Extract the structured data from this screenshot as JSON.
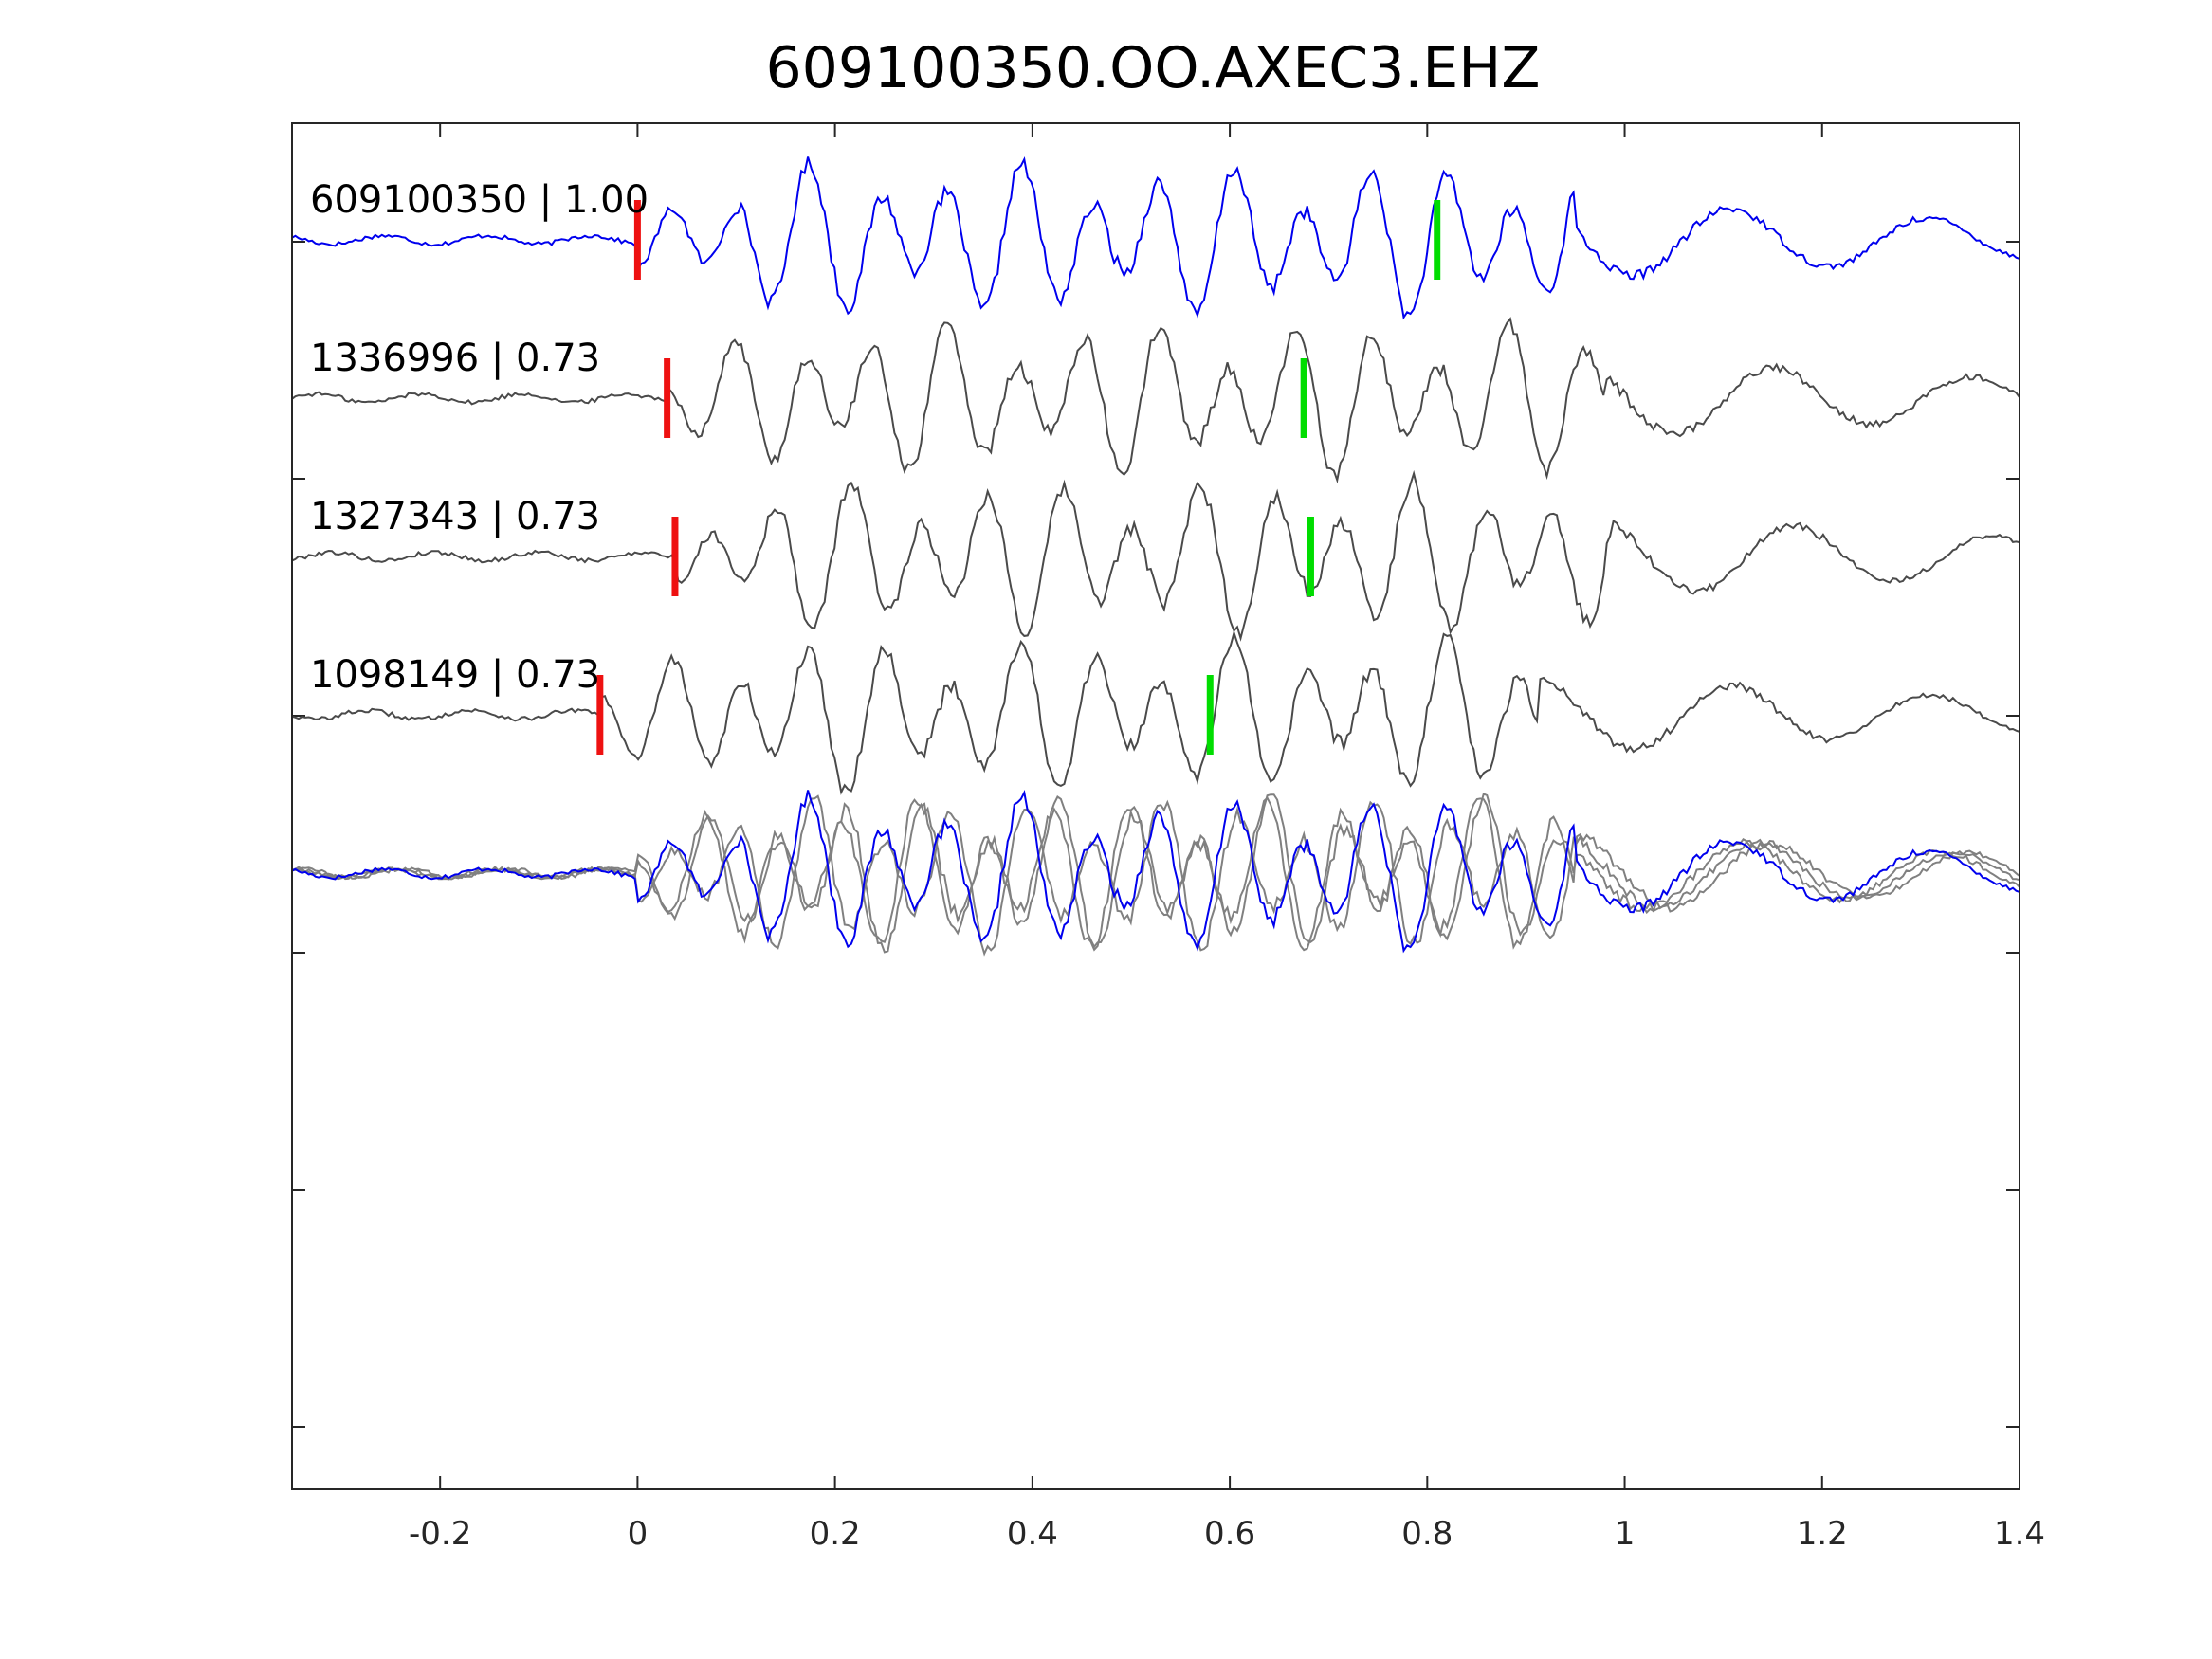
{
  "chart_data": {
    "type": "line",
    "title": "609100350.OO.AXEC3.EHZ",
    "xlabel": "",
    "ylabel": "",
    "xlim": [
      -0.35,
      1.4
    ],
    "xticks": [
      "-0.2",
      "0",
      "0.2",
      "0.4",
      "0.6",
      "0.8",
      "1",
      "1.2",
      "1.4"
    ],
    "xtick_values": [
      -0.2,
      0,
      0.2,
      0.4,
      0.6,
      0.8,
      1,
      1.2,
      1.4
    ],
    "grid": false,
    "colors": {
      "reference": "#0000ee",
      "match": "#4a4a4a",
      "overlay_match": "#808080",
      "p_pick": "#ee1111",
      "s_pick": "#00dd00",
      "axes": "#262626"
    },
    "traces": [
      {
        "label": "609100350 | 1.00",
        "kind": "reference",
        "p_pick": 0.0,
        "s_pick": 0.81,
        "shift": 0.0
      },
      {
        "label": "1336996 | 0.73",
        "kind": "match",
        "p_pick": 0.03,
        "s_pick": 0.675,
        "shift": 0.03
      },
      {
        "label": "1327343 | 0.73",
        "kind": "match",
        "p_pick": 0.038,
        "s_pick": 0.682,
        "shift": 0.038
      },
      {
        "label": "1098149 | 0.73",
        "kind": "match",
        "p_pick": -0.038,
        "s_pick": 0.58,
        "shift": -0.038
      }
    ],
    "overlay": {
      "description_visible": false
    }
  }
}
